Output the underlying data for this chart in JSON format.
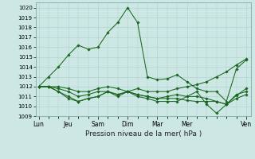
{
  "xlabel": "Pression niveau de la mer( hPa )",
  "ylim": [
    1009,
    1020.5
  ],
  "yticks": [
    1009,
    1010,
    1011,
    1012,
    1013,
    1014,
    1015,
    1016,
    1017,
    1018,
    1019,
    1020
  ],
  "day_labels": [
    "Lun",
    "Jeu",
    "Sam",
    "Dim",
    "Mar",
    "Mer",
    "Ven"
  ],
  "day_x": [
    0,
    3,
    6,
    9,
    12,
    15,
    21
  ],
  "bg_color": "#cde8e4",
  "grid_color": "#aacfcc",
  "line_color": "#1a6620",
  "figsize": [
    3.2,
    2.0
  ],
  "dpi": 100,
  "series": [
    [
      1012.0,
      1013.0,
      1014.0,
      1015.2,
      1016.2,
      1015.8,
      1016.0,
      1017.5,
      1018.5,
      1020.0,
      1018.5,
      1013.0,
      1012.7,
      1012.8,
      1013.2,
      1012.5,
      1011.8,
      1011.5,
      1011.5,
      1010.5,
      1013.8,
      1014.7
    ],
    [
      1012.0,
      1012.0,
      1012.0,
      1011.8,
      1011.5,
      1011.5,
      1011.8,
      1012.0,
      1011.8,
      1011.5,
      1011.8,
      1011.5,
      1011.5,
      1011.5,
      1011.8,
      1012.0,
      1012.2,
      1012.5,
      1013.0,
      1013.5,
      1014.2,
      1014.8
    ],
    [
      1012.0,
      1012.0,
      1011.8,
      1011.5,
      1011.0,
      1011.2,
      1011.5,
      1011.5,
      1011.2,
      1011.5,
      1011.2,
      1011.0,
      1010.8,
      1011.0,
      1011.2,
      1011.0,
      1011.0,
      1010.8,
      1010.5,
      1010.2,
      1011.2,
      1011.5
    ],
    [
      1012.0,
      1012.0,
      1011.5,
      1010.8,
      1010.5,
      1010.8,
      1011.0,
      1011.5,
      1011.0,
      1011.5,
      1011.2,
      1011.0,
      1010.8,
      1010.8,
      1010.8,
      1010.6,
      1010.5,
      1010.5,
      1010.5,
      1010.2,
      1010.8,
      1011.2
    ],
    [
      1012.0,
      1012.0,
      1011.5,
      1011.0,
      1010.5,
      1010.8,
      1011.0,
      1011.5,
      1011.2,
      1011.5,
      1011.0,
      1010.8,
      1010.5,
      1010.5,
      1010.5,
      1011.0,
      1011.5,
      1010.2,
      1009.3,
      1010.2,
      1011.1,
      1011.8
    ]
  ]
}
